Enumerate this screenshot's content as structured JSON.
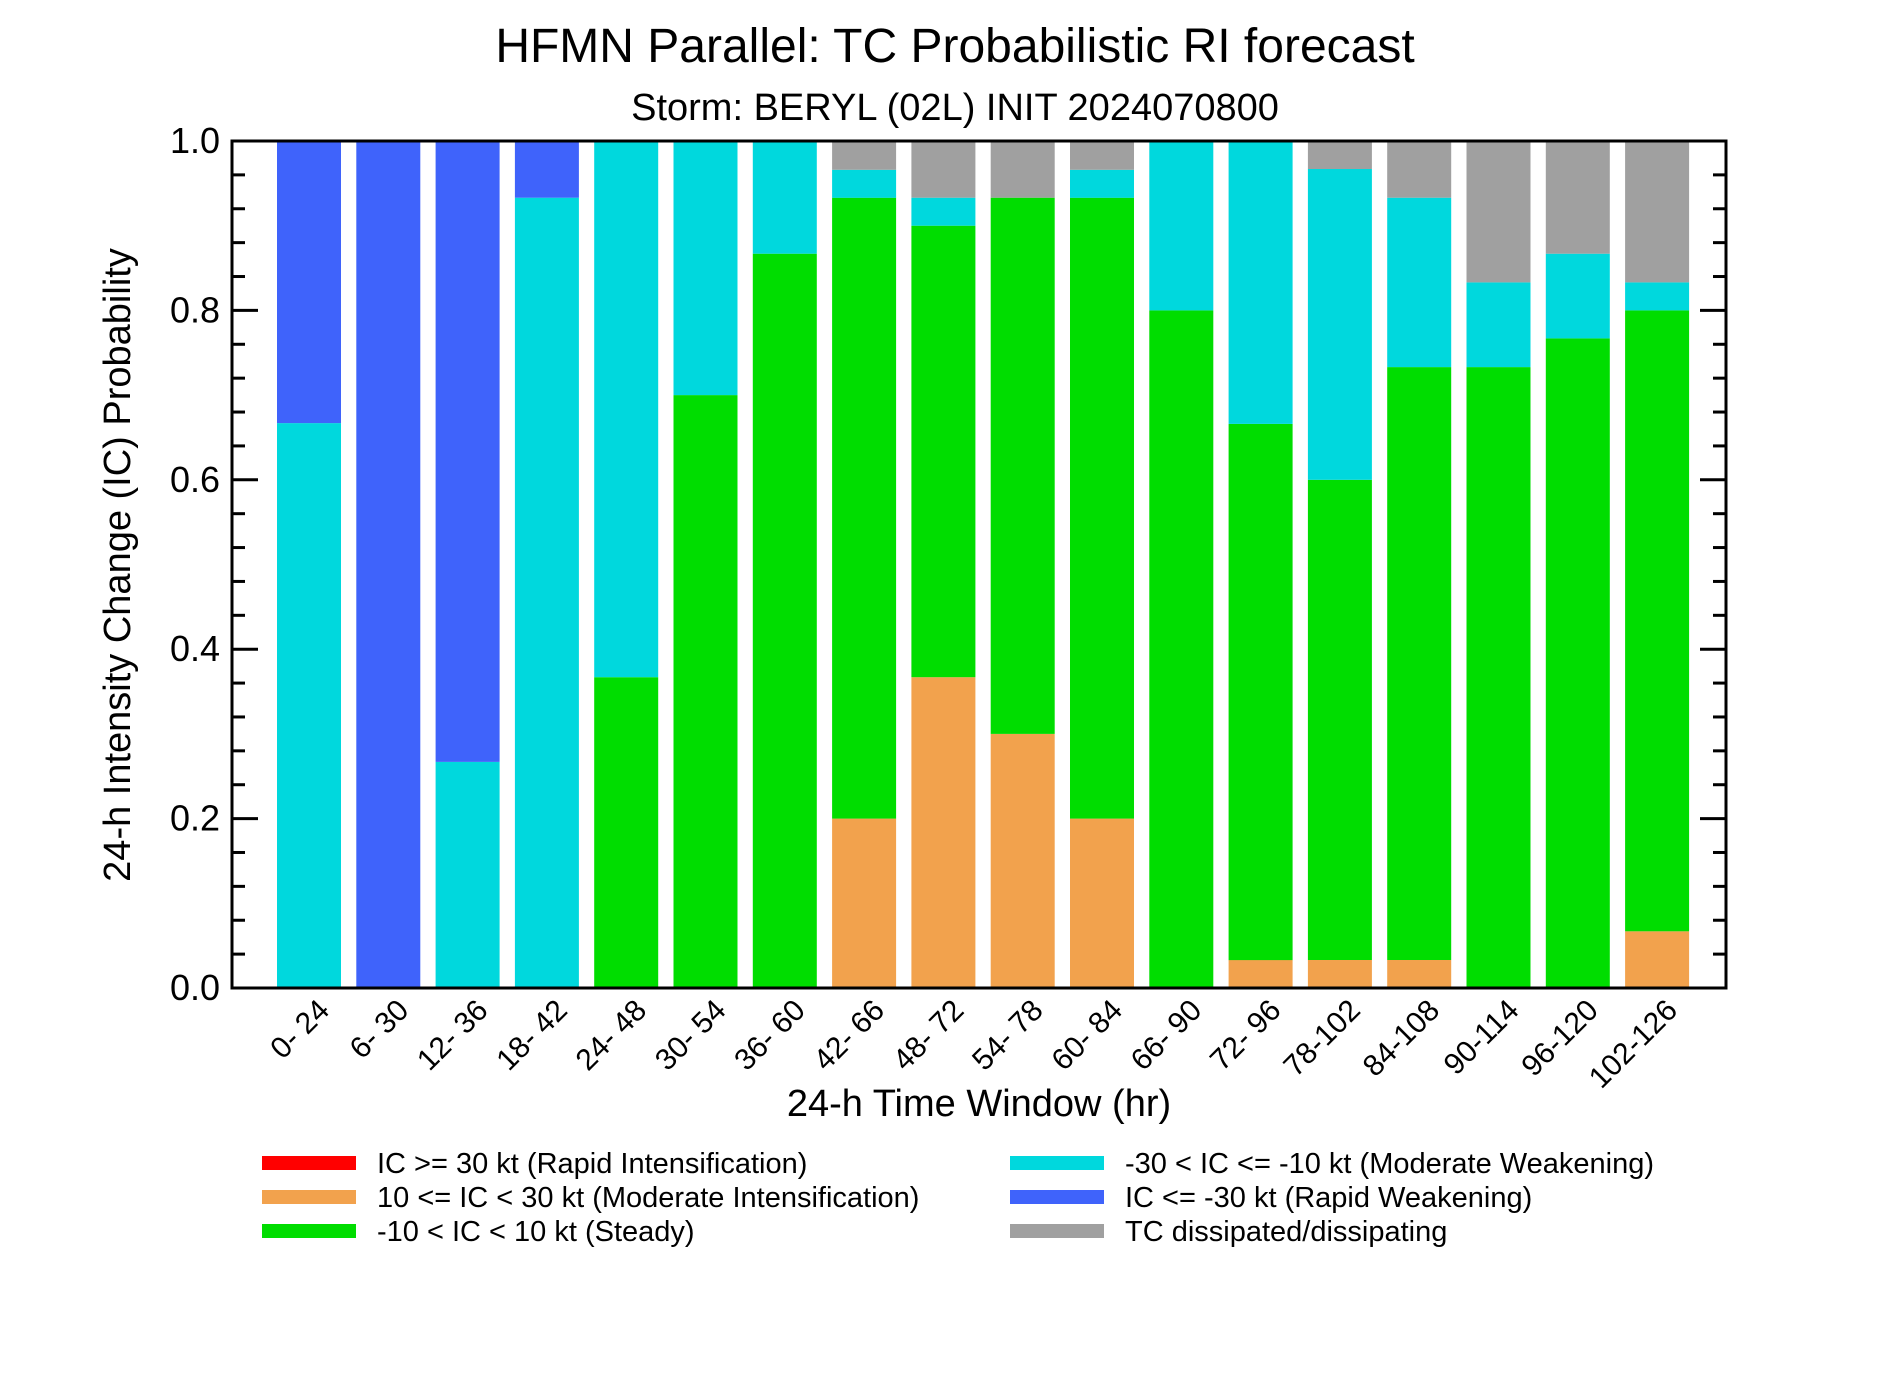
{
  "chart_data": {
    "type": "bar",
    "stacked": true,
    "title": "HFMN Parallel: TC Probabilistic RI forecast",
    "subtitle": "Storm: BERYL (02L) INIT 2024070800",
    "xlabel": "24-h Time Window (hr)",
    "ylabel": "24-h Intensity Change (IC) Probability",
    "ylim": [
      0,
      1
    ],
    "yticks": [
      "0.0",
      "0.2",
      "0.4",
      "0.6",
      "0.8",
      "1.0"
    ],
    "grid": false,
    "legend_position": "bottom",
    "categories": [
      "0- 24",
      "6- 30",
      "12- 36",
      "18- 42",
      "24- 48",
      "30- 54",
      "36- 60",
      "42- 66",
      "48- 72",
      "54- 78",
      "60- 84",
      "66- 90",
      "72- 96",
      "78-102",
      "84-108",
      "90-114",
      "96-120",
      "102-126"
    ],
    "series": [
      {
        "name": "IC >= 30 kt (Rapid Intensification)",
        "color": "#ff0000",
        "values": [
          0,
          0,
          0,
          0,
          0,
          0,
          0,
          0,
          0,
          0,
          0,
          0,
          0,
          0,
          0,
          0,
          0,
          0
        ]
      },
      {
        "name": "10 <= IC < 30 kt (Moderate Intensification)",
        "color": "#f2a24d",
        "values": [
          0,
          0,
          0,
          0,
          0,
          0,
          0,
          0.2,
          0.367,
          0.3,
          0.2,
          0,
          0.033,
          0.033,
          0.033,
          0,
          0,
          0.067
        ]
      },
      {
        "name": "-10 < IC < 10 kt (Steady)",
        "color": "#00dd00",
        "values": [
          0,
          0,
          0,
          0,
          0.367,
          0.7,
          0.867,
          0.733,
          0.533,
          0.633,
          0.733,
          0.8,
          0.633,
          0.567,
          0.7,
          0.733,
          0.767,
          0.733
        ]
      },
      {
        "name": "-30 < IC <= -10 kt (Moderate Weakening)",
        "color": "#00d8dd",
        "values": [
          0.667,
          0,
          0.267,
          0.933,
          0.633,
          0.3,
          0.133,
          0.033,
          0.033,
          0,
          0.033,
          0.2,
          0.333,
          0.367,
          0.2,
          0.1,
          0.1,
          0.033
        ]
      },
      {
        "name": "IC <= -30 kt (Rapid Weakening)",
        "color": "#3f63fb",
        "values": [
          0.333,
          1,
          0.733,
          0.067,
          0,
          0,
          0,
          0,
          0,
          0,
          0,
          0,
          0,
          0,
          0,
          0,
          0,
          0
        ]
      },
      {
        "name": "TC dissipated/dissipating",
        "color": "#a0a0a0",
        "values": [
          0,
          0,
          0,
          0,
          0,
          0,
          0,
          0.033,
          0.067,
          0.067,
          0.033,
          0,
          0,
          0.033,
          0.067,
          0.167,
          0.133,
          0.167
        ]
      }
    ],
    "legend_order": [
      0,
      3,
      1,
      4,
      2,
      5
    ]
  }
}
